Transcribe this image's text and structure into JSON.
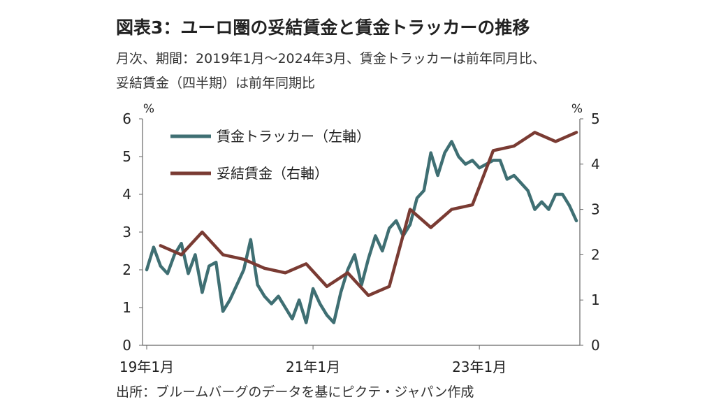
{
  "title": "図表3：ユーロ圏の妥結賃金と賃金トラッカーの推移",
  "subtitle_line1": "月次、期間：2019年1月～2024年3月、賃金トラッカーは前年同月比、",
  "subtitle_line2": "妥結賃金（四半期）は前年同期比",
  "source": "出所：ブルームバーグのデータを基にピクテ・ジャパン作成",
  "chart_data": {
    "type": "line",
    "x_tick_labels": [
      "19年1月",
      "21年1月",
      "23年1月"
    ],
    "left_axis": {
      "unit": "%",
      "ylim": [
        0,
        6
      ],
      "ticks": [
        "0",
        "1",
        "2",
        "3",
        "4",
        "5",
        "6"
      ]
    },
    "right_axis": {
      "unit": "%",
      "ylim": [
        0,
        5
      ],
      "ticks": [
        "0",
        "1",
        "2",
        "3",
        "4",
        "5"
      ]
    },
    "grid": false,
    "legend_position": "top-left",
    "colors": {
      "tracker": "#3f6f73",
      "negotiated": "#7a3b33"
    },
    "series": [
      {
        "name": "賃金トラッカー（左軸）",
        "axis": "left",
        "x_month_index": [
          0,
          1,
          2,
          3,
          4,
          5,
          6,
          7,
          8,
          9,
          10,
          11,
          12,
          13,
          14,
          15,
          16,
          17,
          18,
          19,
          20,
          21,
          22,
          23,
          24,
          25,
          26,
          27,
          28,
          29,
          30,
          31,
          32,
          33,
          34,
          35,
          36,
          37,
          38,
          39,
          40,
          41,
          42,
          43,
          44,
          45,
          46,
          47,
          48,
          49,
          50,
          51,
          52,
          53,
          54,
          55,
          56,
          57,
          58,
          59,
          60,
          61,
          62
        ],
        "values": [
          2.0,
          2.6,
          2.1,
          1.9,
          2.4,
          2.7,
          1.9,
          2.4,
          1.4,
          2.1,
          2.2,
          0.9,
          1.2,
          1.6,
          2.0,
          2.8,
          1.6,
          1.3,
          1.1,
          1.3,
          1.0,
          0.7,
          1.2,
          0.6,
          1.5,
          1.1,
          0.8,
          0.6,
          1.4,
          2.0,
          2.4,
          1.6,
          2.3,
          2.9,
          2.5,
          3.1,
          3.3,
          2.9,
          3.2,
          3.9,
          4.1,
          5.1,
          4.5,
          5.1,
          5.4,
          5.0,
          4.8,
          4.9,
          4.7,
          4.8,
          4.9,
          4.9,
          4.4,
          4.5,
          4.3,
          4.1,
          3.6,
          3.8,
          3.6,
          4.0,
          4.0,
          3.7,
          3.3
        ]
      },
      {
        "name": "妥結賃金（右軸）",
        "axis": "right",
        "x_month_index": [
          2,
          5,
          8,
          11,
          14,
          17,
          20,
          23,
          26,
          29,
          32,
          35,
          38,
          41,
          44,
          47,
          50,
          53,
          56,
          59,
          62
        ],
        "values": [
          2.2,
          2.0,
          2.5,
          2.0,
          1.9,
          1.7,
          1.6,
          1.8,
          1.3,
          1.6,
          1.1,
          1.3,
          3.0,
          2.6,
          3.0,
          3.1,
          4.3,
          4.4,
          4.7,
          4.5,
          4.7
        ]
      }
    ]
  }
}
